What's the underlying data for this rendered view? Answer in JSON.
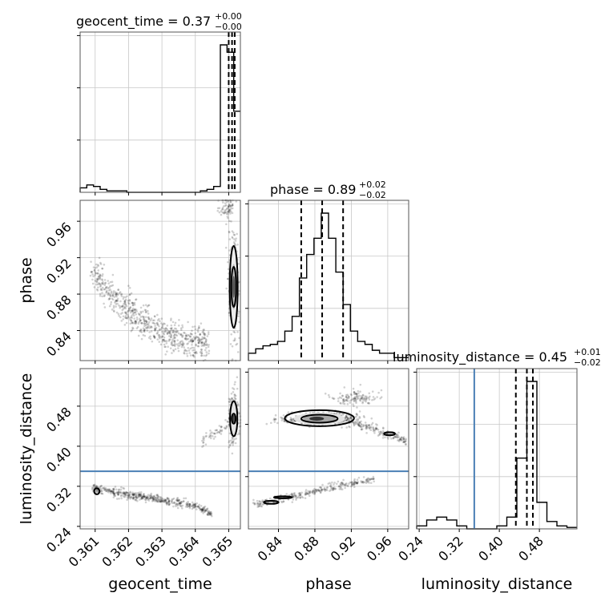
{
  "chart_data": {
    "type": "corner",
    "parameters": [
      "geocent_time",
      "phase",
      "luminosity_distance"
    ],
    "titles": [
      {
        "parameter": "geocent_time",
        "label": "geocent_time = 0.37",
        "plus": "+0.00",
        "minus": "−0.00"
      },
      {
        "parameter": "phase",
        "label": "phase = 0.89",
        "plus": "+0.02",
        "minus": "−0.02"
      },
      {
        "parameter": "luminosity_distance",
        "label": "luminosity_distance = 0.45",
        "plus": "+0.01",
        "minus": "−0.02"
      }
    ],
    "axis_labels": {
      "x": [
        "geocent_time",
        "phase",
        "luminosity_distance"
      ],
      "y": [
        "phase",
        "luminosity_distance"
      ]
    },
    "ranges": {
      "geocent_time": [
        0.36055,
        0.36535
      ],
      "phase": [
        0.807,
        0.983
      ],
      "luminosity_distance": [
        0.235,
        0.555
      ]
    },
    "ticks": {
      "geocent_time": [
        "0.361",
        "0.362",
        "0.363",
        "0.364",
        "0.365"
      ],
      "phase": [
        "0.84",
        "0.88",
        "0.92",
        "0.96"
      ],
      "luminosity_distance": [
        "0.24",
        "0.32",
        "0.40",
        "0.48"
      ]
    },
    "quantiles": {
      "geocent_time": [
        0.365,
        0.3651,
        0.36518
      ],
      "phase": [
        0.865,
        0.888,
        0.911
      ],
      "luminosity_distance": [
        0.433,
        0.455,
        0.467
      ]
    },
    "truth": {
      "luminosity_distance": 0.35
    },
    "histograms": {
      "geocent_time": {
        "edges": [
          0.36055,
          0.36075,
          0.36095,
          0.36115,
          0.36135,
          0.36155,
          0.36175,
          0.36195,
          0.36215,
          0.36235,
          0.36255,
          0.36275,
          0.36295,
          0.36315,
          0.36335,
          0.36355,
          0.36375,
          0.36395,
          0.36415,
          0.36435,
          0.36455,
          0.36475,
          0.36495,
          0.36515,
          0.36535
        ],
        "counts": [
          0.03,
          0.05,
          0.04,
          0.02,
          0.01,
          0.01,
          0.01,
          0.0,
          0.0,
          0.0,
          0.0,
          0.0,
          0.0,
          0.0,
          0.0,
          0.0,
          0.0,
          0.0,
          0.01,
          0.02,
          0.04,
          1.0,
          0.95,
          0.55
        ]
      },
      "phase": {
        "edges": [
          0.807,
          0.815,
          0.823,
          0.831,
          0.839,
          0.847,
          0.855,
          0.863,
          0.871,
          0.879,
          0.887,
          0.895,
          0.903,
          0.911,
          0.919,
          0.927,
          0.935,
          0.943,
          0.951,
          0.959,
          0.967,
          0.975,
          0.983
        ],
        "counts": [
          0.05,
          0.08,
          0.1,
          0.11,
          0.13,
          0.2,
          0.3,
          0.56,
          0.72,
          0.83,
          1.0,
          0.83,
          0.6,
          0.38,
          0.2,
          0.13,
          0.11,
          0.07,
          0.05,
          0.05,
          0.02,
          0.02
        ]
      },
      "luminosity_distance": {
        "edges": [
          0.235,
          0.255,
          0.275,
          0.295,
          0.315,
          0.335,
          0.355,
          0.375,
          0.395,
          0.415,
          0.435,
          0.455,
          0.475,
          0.495,
          0.515,
          0.535,
          0.555
        ],
        "counts": [
          0.02,
          0.06,
          0.08,
          0.06,
          0.02,
          0.0,
          0.0,
          0.0,
          0.02,
          0.08,
          0.48,
          1.0,
          0.18,
          0.05,
          0.02,
          0.01
        ]
      }
    },
    "grid": true
  }
}
